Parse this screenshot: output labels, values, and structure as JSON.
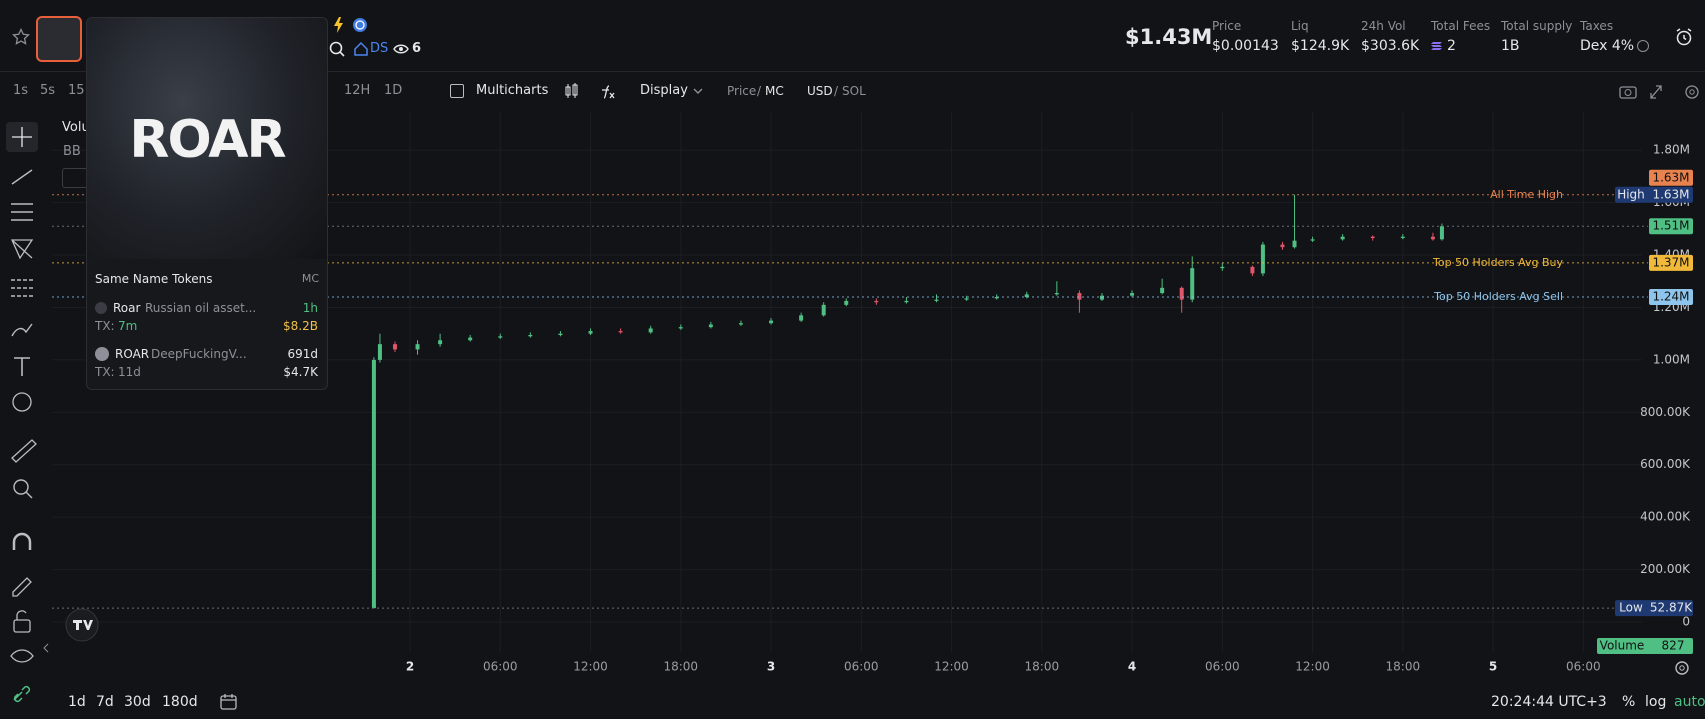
{
  "header": {
    "market_cap": "$1.43M",
    "dex_label": "DS",
    "watchers": "6",
    "stats": [
      {
        "label": "Price",
        "value": "$0.00143"
      },
      {
        "label": "Liq",
        "value": "$124.9K"
      },
      {
        "label": "24h Vol",
        "value": "$303.6K"
      },
      {
        "label": "Total Fees",
        "value": "2"
      },
      {
        "label": "Total supply",
        "value": "1B"
      },
      {
        "label": "Taxes",
        "value": "Dex 4%"
      }
    ]
  },
  "toolbar": {
    "intervals": [
      "1s",
      "5s",
      "15",
      "12H",
      "1D"
    ],
    "multicharts": "Multicharts",
    "display": "Display",
    "price_mc": [
      "Price",
      "/",
      "MC"
    ],
    "currency": [
      "USD",
      "/",
      "SOL"
    ]
  },
  "legend": {
    "volume": "Volume",
    "bb": "BB"
  },
  "popup": {
    "logo": "ROAR",
    "title": "Same Name Tokens",
    "column": "MC",
    "tokens": [
      {
        "symbol": "Roar",
        "name": "Russian oil asset...",
        "age": "1h",
        "tx_label": "TX:",
        "tx_age": "7m",
        "mc": "$8.2B"
      },
      {
        "symbol": "ROAR",
        "name": "DeepFuckingV...",
        "age": "691d",
        "tx_label": "TX:",
        "tx_age": "11d",
        "mc": "$4.7K"
      }
    ]
  },
  "chart_data": {
    "type": "candlestick",
    "x": [
      -2.4,
      -2,
      -1,
      0.5,
      2,
      4,
      6,
      8,
      10,
      12,
      14,
      16,
      18,
      20,
      22,
      24,
      26,
      27.5,
      29,
      31,
      33,
      35,
      37,
      39,
      41,
      43,
      44.5,
      46,
      48,
      50,
      51.3,
      52,
      54,
      56,
      56.7,
      58,
      58.8,
      60,
      62,
      64,
      66,
      68,
      68.6
    ],
    "open": [
      52870,
      1000000,
      1060000,
      1040000,
      1060000,
      1075000,
      1085000,
      1090000,
      1095000,
      1100000,
      1110000,
      1105000,
      1120000,
      1125000,
      1135000,
      1140000,
      1150000,
      1170000,
      1210000,
      1225000,
      1220000,
      1225000,
      1230000,
      1235000,
      1240000,
      1250000,
      1255000,
      1230000,
      1245000,
      1255000,
      1275000,
      1230000,
      1350000,
      1355000,
      1330000,
      1440000,
      1430000,
      1455000,
      1460000,
      1470000,
      1465000,
      1470000,
      1460000
    ],
    "high": [
      1010000,
      1100000,
      1070000,
      1075000,
      1100000,
      1095000,
      1100000,
      1105000,
      1110000,
      1120000,
      1120000,
      1130000,
      1135000,
      1145000,
      1150000,
      1160000,
      1180000,
      1220000,
      1235000,
      1235000,
      1240000,
      1250000,
      1245000,
      1250000,
      1260000,
      1300000,
      1265000,
      1255000,
      1265000,
      1310000,
      1280000,
      1395000,
      1370000,
      1360000,
      1450000,
      1450000,
      1630000,
      1470000,
      1480000,
      1475000,
      1480000,
      1485000,
      1520000
    ],
    "low": [
      52870,
      990000,
      1030000,
      1020000,
      1050000,
      1070000,
      1080000,
      1085000,
      1090000,
      1095000,
      1100000,
      1100000,
      1115000,
      1120000,
      1130000,
      1135000,
      1145000,
      1165000,
      1205000,
      1210000,
      1215000,
      1220000,
      1225000,
      1230000,
      1235000,
      1245000,
      1180000,
      1225000,
      1240000,
      1250000,
      1180000,
      1220000,
      1340000,
      1320000,
      1320000,
      1420000,
      1425000,
      1450000,
      1455000,
      1455000,
      1460000,
      1455000,
      1455000
    ],
    "close": [
      1000000,
      1060000,
      1040000,
      1060000,
      1075000,
      1085000,
      1090000,
      1095000,
      1100000,
      1110000,
      1105000,
      1120000,
      1125000,
      1135000,
      1140000,
      1150000,
      1170000,
      1210000,
      1225000,
      1220000,
      1225000,
      1230000,
      1235000,
      1240000,
      1250000,
      1255000,
      1230000,
      1245000,
      1255000,
      1275000,
      1230000,
      1350000,
      1355000,
      1330000,
      1440000,
      1430000,
      1455000,
      1460000,
      1470000,
      1465000,
      1470000,
      1460000,
      1510000
    ],
    "up_color": "#4fbf83",
    "down_color": "#e05569",
    "xlim": [
      -23.8,
      81.9
    ],
    "xticks": [
      {
        "value": 0,
        "label": "2"
      },
      {
        "value": 6,
        "label": "06:00"
      },
      {
        "value": 12,
        "label": "12:00"
      },
      {
        "value": 18,
        "label": "18:00"
      },
      {
        "value": 24,
        "label": "3"
      },
      {
        "value": 30,
        "label": "06:00"
      },
      {
        "value": 36,
        "label": "12:00"
      },
      {
        "value": 42,
        "label": "18:00"
      },
      {
        "value": 48,
        "label": "4"
      },
      {
        "value": 54,
        "label": "06:00"
      },
      {
        "value": 60,
        "label": "12:00"
      },
      {
        "value": 66,
        "label": "18:00"
      },
      {
        "value": 72,
        "label": "5"
      },
      {
        "value": 78,
        "label": "06:00"
      }
    ],
    "ylim": [
      0,
      1900000
    ],
    "yticks": [
      0,
      {
        "value": 200000,
        "label": "200.00K"
      },
      {
        "value": 400000,
        "label": "400.00K"
      },
      {
        "value": 600000,
        "label": "600.00K"
      },
      {
        "value": 800000,
        "label": "800.00K"
      },
      {
        "value": 1000000,
        "label": "1.00M"
      },
      {
        "value": 1200000,
        "label": "1.20M"
      },
      {
        "value": 1400000,
        "label": "1.40M"
      },
      {
        "value": 1600000,
        "label": "1.60M"
      },
      {
        "value": 1800000,
        "label": "1.80M"
      }
    ],
    "grid": true,
    "levels": [
      {
        "name": "All Time High",
        "value": 1630000,
        "value_label": "1.63M",
        "color": "#e8834f"
      },
      {
        "name": "Top 50 Holders Avg Buy",
        "value": 1370000,
        "value_label": "1.37M",
        "color": "#f0b93a"
      },
      {
        "name": "Top 50 Holders Avg Sell",
        "value": 1240000,
        "value_label": "1.24M",
        "color": "#8ec5ec"
      }
    ],
    "high_badge": {
      "label": "High",
      "value": 1630000,
      "value_label": "1.63M",
      "color": "#1f3a72"
    },
    "low_badge": {
      "label": "Low",
      "value": 52870,
      "value_label": "52.87K",
      "color": "#1f3a72"
    },
    "current": {
      "value": 1510000,
      "value_label": "1.51M",
      "color": "#4fbf83"
    },
    "volume": {
      "label": "Volume",
      "value": 827,
      "color": "#4fbf83"
    }
  },
  "footer": {
    "ranges": [
      "1d",
      "7d",
      "30d",
      "180d"
    ],
    "clock": "20:24:44 UTC+3",
    "percent": "%",
    "log": "log",
    "auto": "auto"
  }
}
